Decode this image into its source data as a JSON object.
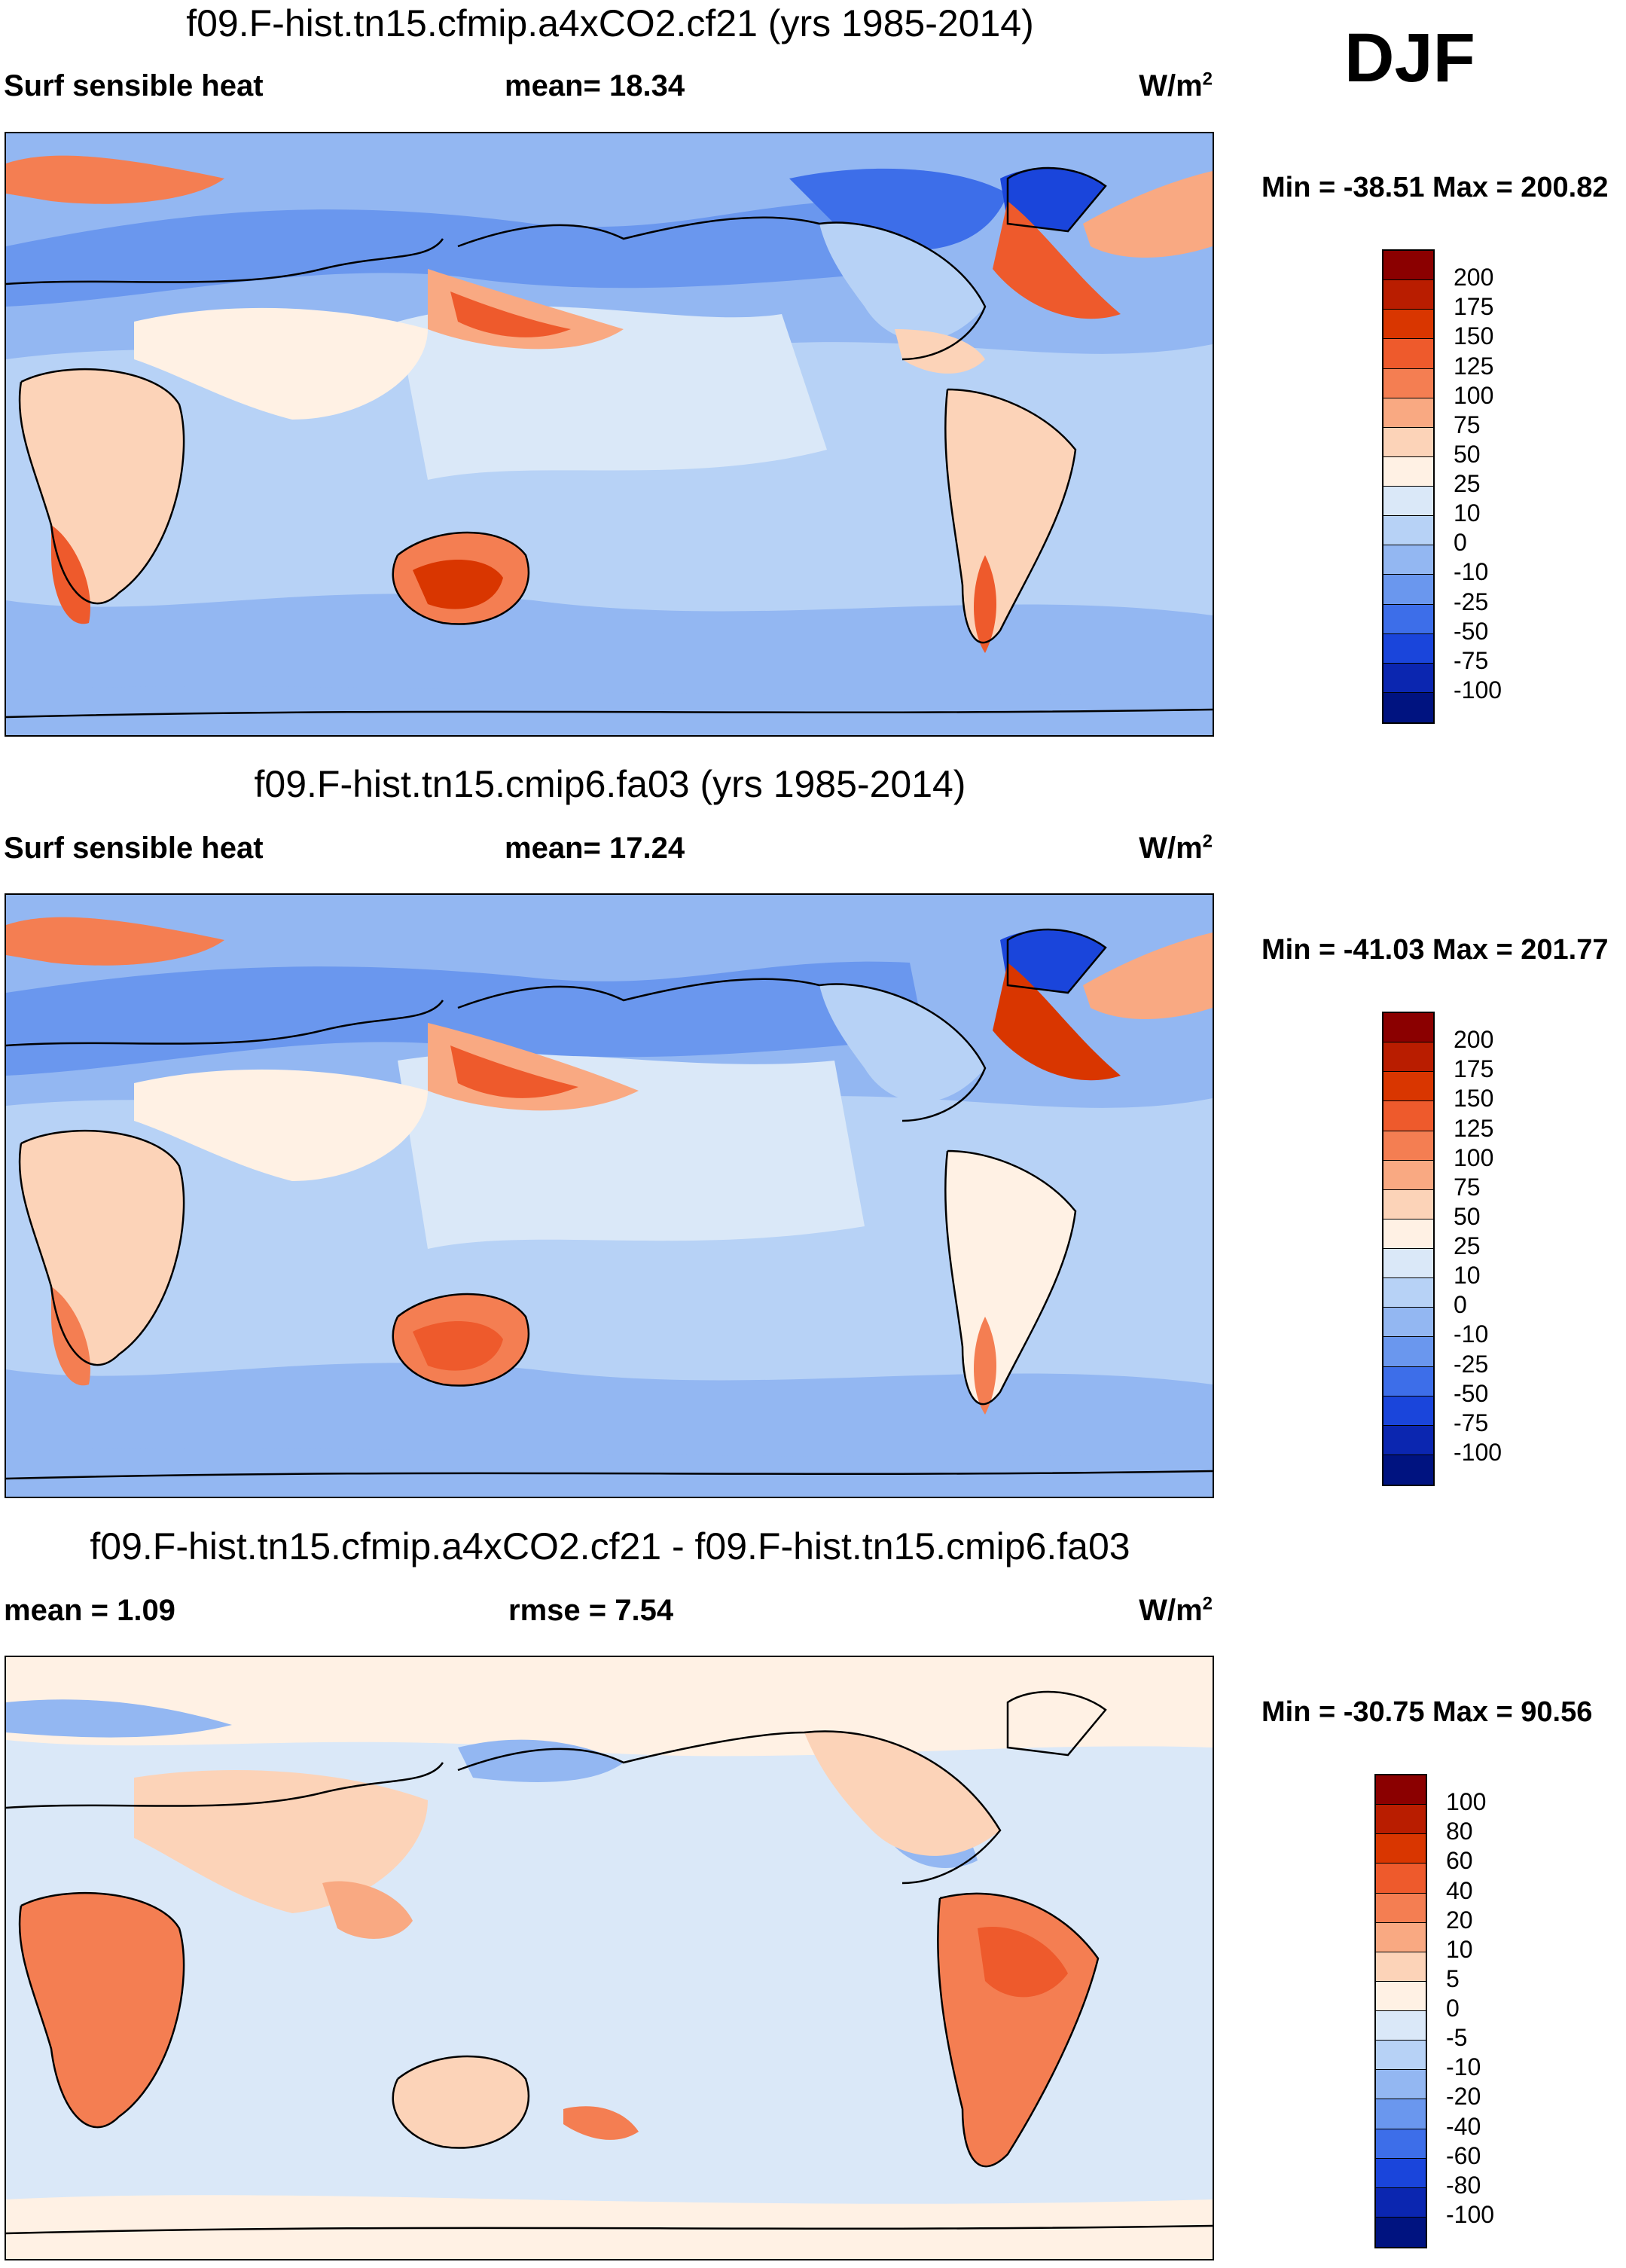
{
  "season": "DJF",
  "panels": [
    {
      "title": "f09.F-hist.tn15.cfmip.a4xCO2.cf21 (yrs 1985-2014)",
      "left_label": "Surf sensible heat",
      "center_label": "mean=  18.34",
      "units_base": "W/m",
      "units_exp": "2",
      "minmax": "Min = -38.51 Max = 200.82",
      "colorbar": {
        "labels": [
          "200",
          "175",
          "150",
          "125",
          "100",
          "75",
          "50",
          "25",
          "10",
          "0",
          "-10",
          "-25",
          "-50",
          "-75",
          "-100"
        ],
        "colors": [
          "#8b0000",
          "#b91d00",
          "#d93600",
          "#ee5a2c",
          "#f47e52",
          "#f9a982",
          "#fcd3b8",
          "#fff1e4",
          "#dae8f8",
          "#b7d2f6",
          "#93b7f2",
          "#6a97ee",
          "#3d6ee9",
          "#1a45db",
          "#0b26b0",
          "#001380"
        ]
      }
    },
    {
      "title": "f09.F-hist.tn15.cmip6.fa03 (yrs 1985-2014)",
      "left_label": "Surf sensible heat",
      "center_label": "mean=  17.24",
      "units_base": "W/m",
      "units_exp": "2",
      "minmax": "Min = -41.03 Max = 201.77",
      "colorbar": {
        "labels": [
          "200",
          "175",
          "150",
          "125",
          "100",
          "75",
          "50",
          "25",
          "10",
          "0",
          "-10",
          "-25",
          "-50",
          "-75",
          "-100"
        ],
        "colors": [
          "#8b0000",
          "#b91d00",
          "#d93600",
          "#ee5a2c",
          "#f47e52",
          "#f9a982",
          "#fcd3b8",
          "#fff1e4",
          "#dae8f8",
          "#b7d2f6",
          "#93b7f2",
          "#6a97ee",
          "#3d6ee9",
          "#1a45db",
          "#0b26b0",
          "#001380"
        ]
      }
    },
    {
      "title": "f09.F-hist.tn15.cfmip.a4xCO2.cf21 - f09.F-hist.tn15.cmip6.fa03",
      "left_label": "mean =   1.09",
      "center_label": "rmse =   7.54",
      "units_base": "W/m",
      "units_exp": "2",
      "minmax": "Min = -30.75 Max =  90.56",
      "colorbar": {
        "labels": [
          "100",
          "80",
          "60",
          "40",
          "20",
          "10",
          "5",
          "0",
          "-5",
          "-10",
          "-20",
          "-40",
          "-60",
          "-80",
          "-100"
        ],
        "colors": [
          "#8b0000",
          "#b91d00",
          "#d93600",
          "#ee5a2c",
          "#f47e52",
          "#f9a982",
          "#fcd3b8",
          "#fff1e4",
          "#dae8f8",
          "#b7d2f6",
          "#93b7f2",
          "#6a97ee",
          "#3d6ee9",
          "#1a45db",
          "#0b26b0",
          "#001380"
        ]
      }
    }
  ]
}
